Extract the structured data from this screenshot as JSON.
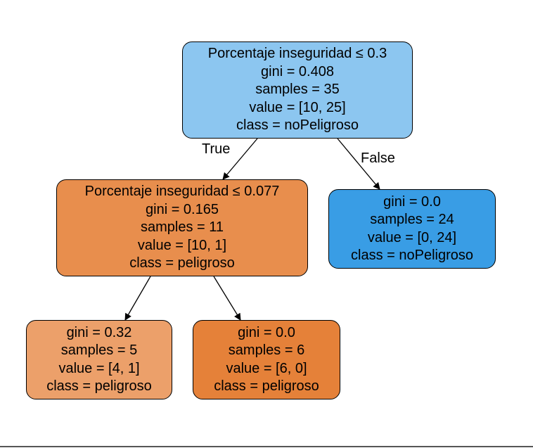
{
  "nodes": [
    {
      "id": "root",
      "lines": [
        "Porcentaje inseguridad ≤ 0.3",
        "gini = 0.408",
        "samples = 35",
        "value = [10, 25]",
        "class = noPeligroso"
      ],
      "fill": "#8cc6f0"
    },
    {
      "id": "left",
      "lines": [
        "Porcentaje inseguridad ≤ 0.077",
        "gini = 0.165",
        "samples = 11",
        "value = [10, 1]",
        "class = peligroso"
      ],
      "fill": "#e88e4d"
    },
    {
      "id": "right",
      "lines": [
        "gini = 0.0",
        "samples = 24",
        "value = [0, 24]",
        "class = noPeligroso"
      ],
      "fill": "#399de5"
    },
    {
      "id": "leftleft",
      "lines": [
        "gini = 0.32",
        "samples = 5",
        "value = [4, 1]",
        "class = peligroso"
      ],
      "fill": "#eca06a"
    },
    {
      "id": "leftright",
      "lines": [
        "gini = 0.0",
        "samples = 6",
        "value = [6, 0]",
        "class = peligroso"
      ],
      "fill": "#e58139"
    }
  ],
  "edges": [
    {
      "from": "root",
      "to": "left",
      "label": "True"
    },
    {
      "from": "root",
      "to": "right",
      "label": "False"
    },
    {
      "from": "left",
      "to": "leftleft",
      "label": ""
    },
    {
      "from": "left",
      "to": "leftright",
      "label": ""
    }
  ]
}
